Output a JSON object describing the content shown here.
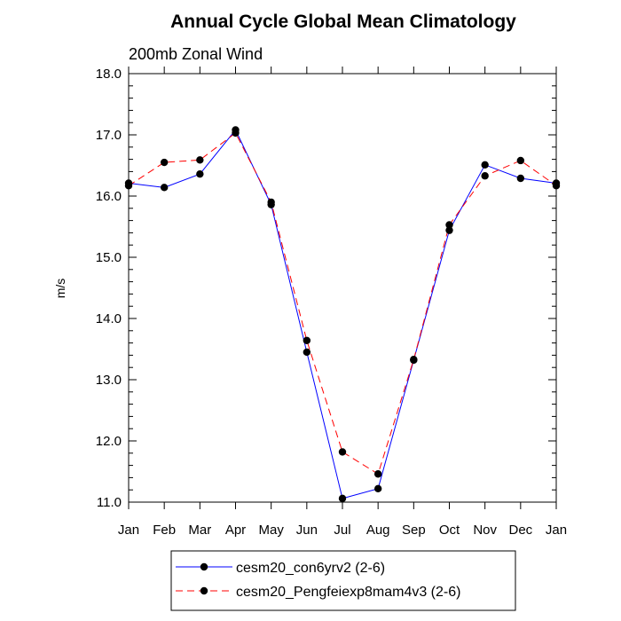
{
  "chart_data": {
    "type": "line",
    "title": "Annual Cycle Global Mean Climatology",
    "subtitle": "200mb Zonal Wind",
    "xlabel": "",
    "ylabel": "m/s",
    "categories": [
      "Jan",
      "Feb",
      "Mar",
      "Apr",
      "May",
      "Jun",
      "Jul",
      "Aug",
      "Sep",
      "Oct",
      "Nov",
      "Dec",
      "Jan"
    ],
    "ylim": [
      11.0,
      18.0
    ],
    "yticks": [
      "11.0",
      "12.0",
      "13.0",
      "14.0",
      "15.0",
      "16.0",
      "17.0",
      "18.0"
    ],
    "grid": false,
    "legend_position": "bottom",
    "series": [
      {
        "name": "cesm20_con6yrv2 (2-6)",
        "color": "#0000ff",
        "dash": "solid",
        "values": [
          16.21,
          16.14,
          16.36,
          17.08,
          15.86,
          13.45,
          11.06,
          11.22,
          13.32,
          15.44,
          16.51,
          16.29,
          16.21
        ]
      },
      {
        "name": "cesm20_Pengfeiexp8mam4v3 (2-6)",
        "color": "#ff0000",
        "dash": "dashed",
        "values": [
          16.17,
          16.55,
          16.59,
          17.03,
          15.9,
          13.64,
          11.82,
          11.46,
          13.33,
          15.53,
          16.33,
          16.58,
          16.17
        ]
      }
    ]
  }
}
